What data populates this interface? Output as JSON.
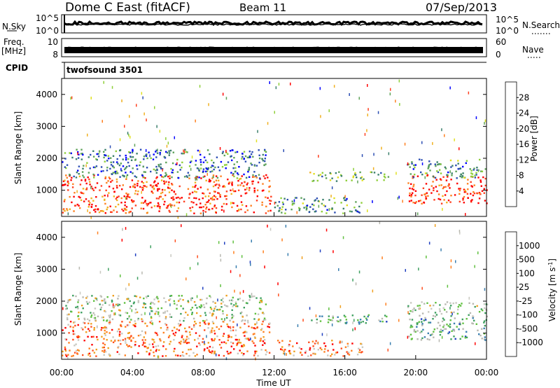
{
  "header": {
    "title": "Dome C East (fitACF)",
    "beam": "Beam 11",
    "date": "07/Sep/2013"
  },
  "top_panels": {
    "nsky_label": "N.Sky",
    "nsky_ticks": [
      "10^5",
      "10^0"
    ],
    "nsearch_label": "N.Search",
    "freq_label_1": "Freq.",
    "freq_label_2": "[MHz]",
    "freq_ticks": [
      "10",
      "8"
    ],
    "nave_ticks": [
      "60",
      "0"
    ],
    "nave_label": "Nave",
    "cpid_label": "CPID",
    "cpid_value": "twofsound 3501"
  },
  "chart_data": [
    {
      "type": "heatmap",
      "name": "power",
      "ylabel": "Slant Range [km]",
      "xlabel": "",
      "yticks": [
        "4000",
        "3000",
        "2000",
        "1000"
      ],
      "ytick_values": [
        4000,
        3000,
        2000,
        1000
      ],
      "ylim": [
        180,
        4500
      ],
      "xlim_hours": [
        0,
        24
      ],
      "colorbar_label": "Power [dB]",
      "colorbar_ticks": [
        "28",
        "24",
        "20",
        "16",
        "12",
        "8",
        "4"
      ],
      "colorbar_colors": [
        "#0000ff",
        "#2c4eb3",
        "#3b7f6c",
        "#5fa35a",
        "#8fcf3a",
        "#e0e020",
        "#f0b020",
        "#ff8020",
        "#ff4020",
        "#ff0000"
      ],
      "regions": [
        {
          "t0": 0.0,
          "t1": 11.8,
          "r0": 300,
          "r1": 1500,
          "level": 0.85
        },
        {
          "t0": 0.0,
          "t1": 11.5,
          "r0": 1400,
          "r1": 2300,
          "level": 0.25
        },
        {
          "t0": 12.0,
          "t1": 17.0,
          "r0": 300,
          "r1": 800,
          "level": 0.3
        },
        {
          "t0": 14.0,
          "t1": 18.5,
          "r0": 1300,
          "r1": 1600,
          "level": 0.4
        },
        {
          "t0": 19.5,
          "t1": 24.0,
          "r0": 600,
          "r1": 1500,
          "level": 0.9
        },
        {
          "t0": 19.5,
          "t1": 24.0,
          "r0": 1400,
          "r1": 2000,
          "level": 0.3
        }
      ]
    },
    {
      "type": "heatmap",
      "name": "velocity",
      "ylabel": "Slant Range [km]",
      "xlabel": "Time UT",
      "xticks": [
        "00:00",
        "04:00",
        "08:00",
        "12:00",
        "16:00",
        "20:00",
        "00:00"
      ],
      "xtick_hours": [
        0,
        4,
        8,
        12,
        16,
        20,
        24
      ],
      "yticks": [
        "4000",
        "3000",
        "2000",
        "1000"
      ],
      "ytick_values": [
        4000,
        3000,
        2000,
        1000
      ],
      "ylim": [
        180,
        4500
      ],
      "xlim_hours": [
        0,
        24
      ],
      "colorbar_label": "Velocity [m s",
      "colorbar_label_sup": "-1",
      "colorbar_label_end": "]",
      "colorbar_ticks": [
        "1000",
        "500",
        "100",
        "25",
        "-25",
        "-100",
        "-500",
        "-1000"
      ],
      "colorbar_colors": [
        "#2040c0",
        "#3a7fb0",
        "#3fa060",
        "#60c040",
        "#b8b8b0",
        "#c8c8c0",
        "#f0a020",
        "#ff8020",
        "#ff5020",
        "#ff0000"
      ],
      "regions": [
        {
          "t0": 0.0,
          "t1": 11.8,
          "r0": 300,
          "r1": 1400,
          "level": 0.75
        },
        {
          "t0": 0.0,
          "t1": 11.5,
          "r0": 1400,
          "r1": 2200,
          "level": 0.45
        },
        {
          "t0": 12.0,
          "t1": 17.0,
          "r0": 300,
          "r1": 800,
          "level": 0.75
        },
        {
          "t0": 14.0,
          "t1": 18.5,
          "r0": 1300,
          "r1": 1600,
          "level": 0.3
        },
        {
          "t0": 19.5,
          "t1": 24.0,
          "r0": 800,
          "r1": 1600,
          "level": 0.3
        },
        {
          "t0": 19.5,
          "t1": 24.0,
          "r0": 1600,
          "r1": 2000,
          "level": 0.45
        }
      ]
    }
  ]
}
